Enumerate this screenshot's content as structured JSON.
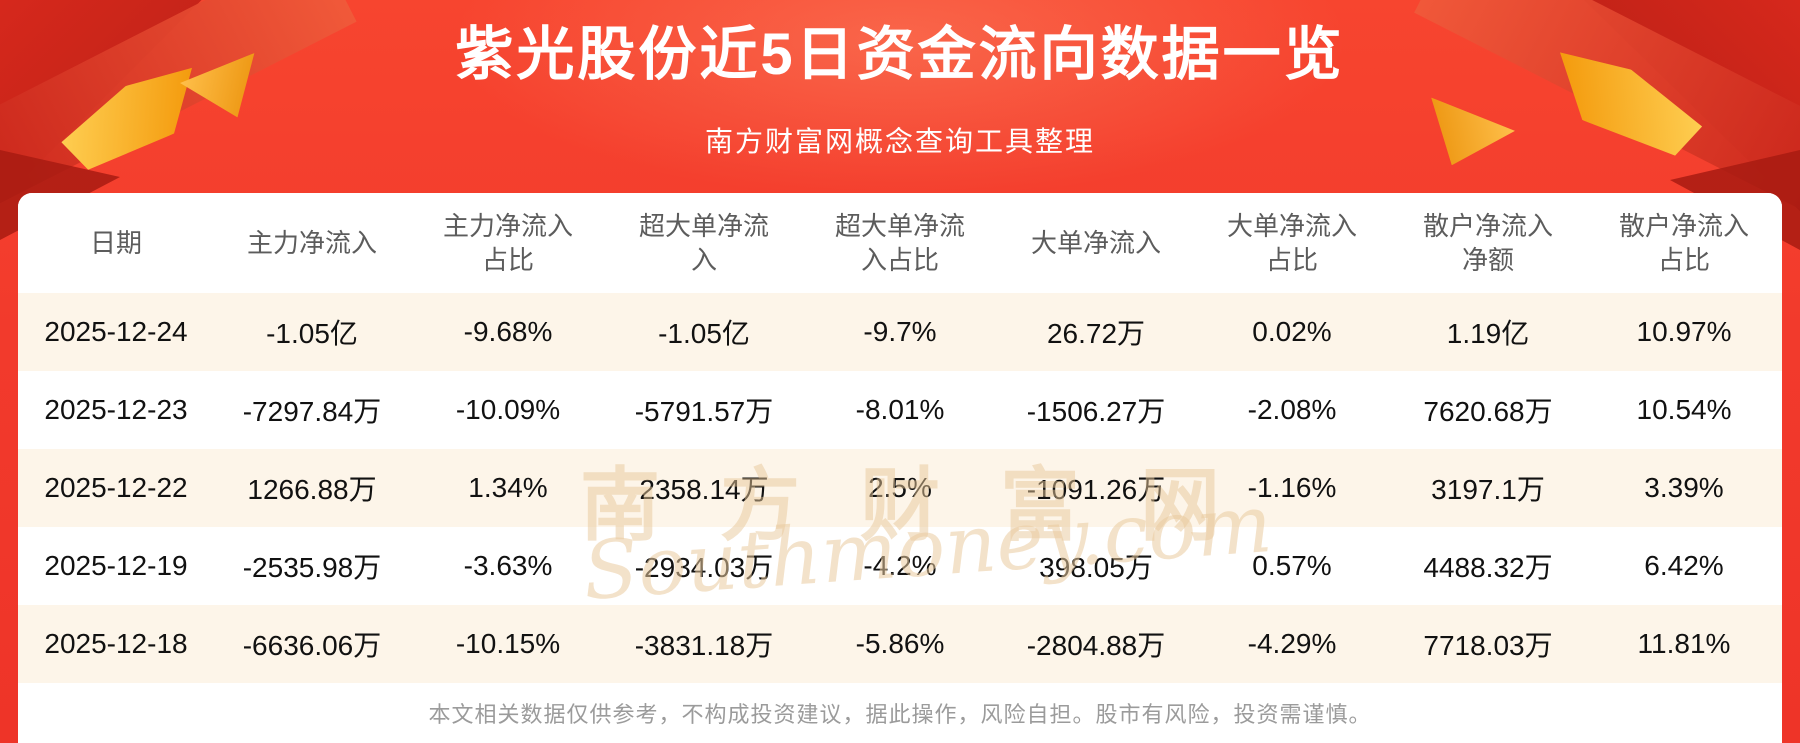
{
  "header": {
    "title": "紫光股份近5日资金流向数据一览",
    "subtitle": "南方财富网概念查询工具整理"
  },
  "watermark": {
    "cn": "南方财富网",
    "en": "Southmoney.com"
  },
  "chart_data": {
    "type": "table",
    "title": "紫光股份近5日资金流向数据一览",
    "subtitle": "南方财富网概念查询工具整理",
    "columns": [
      "日期",
      "主力净流入",
      "主力净流入占比",
      "超大单净流入",
      "超大单净流入占比",
      "大单净流入",
      "大单净流入占比",
      "散户净流入净额",
      "散户净流入占比"
    ],
    "rows": [
      [
        "2025-12-24",
        "-1.05亿",
        "-9.68%",
        "-1.05亿",
        "-9.7%",
        "26.72万",
        "0.02%",
        "1.19亿",
        "10.97%"
      ],
      [
        "2025-12-23",
        "-7297.84万",
        "-10.09%",
        "-5791.57万",
        "-8.01%",
        "-1506.27万",
        "-2.08%",
        "7620.68万",
        "10.54%"
      ],
      [
        "2025-12-22",
        "1266.88万",
        "1.34%",
        "2358.14万",
        "2.5%",
        "-1091.26万",
        "-1.16%",
        "3197.1万",
        "3.39%"
      ],
      [
        "2025-12-19",
        "-2535.98万",
        "-3.63%",
        "-2934.03万",
        "-4.2%",
        "398.05万",
        "0.57%",
        "4488.32万",
        "6.42%"
      ],
      [
        "2025-12-18",
        "-6636.06万",
        "-10.15%",
        "-3831.18万",
        "-5.86%",
        "-2804.88万",
        "-4.29%",
        "7718.03万",
        "11.81%"
      ]
    ],
    "striped_row_indices": [
      0,
      2,
      4
    ]
  },
  "footer": {
    "disclaimer": "本文相关数据仅供参考，不构成投资建议，据此操作，风险自担。股市有风险，投资需谨慎。"
  },
  "colors": {
    "background_red": "#f23c2b",
    "ribbon_dark_red": "#b01f15",
    "ribbon_gold": "#f5a623",
    "row_stripe": "#fdf5e9",
    "header_text": "#5c5c5c",
    "cell_text": "#111111",
    "disclaimer_text": "#9b9b9b",
    "watermark_tan": "#e8c79c",
    "title_text": "#ffffff"
  }
}
